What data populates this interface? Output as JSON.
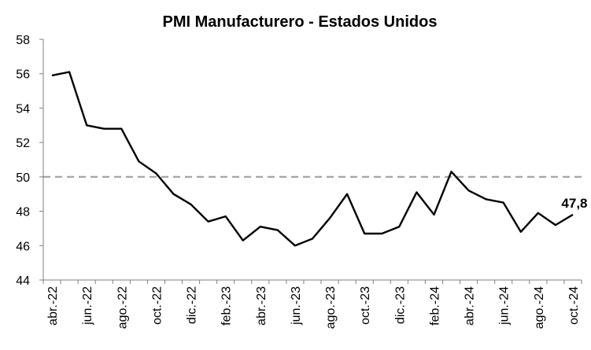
{
  "chart_data": {
    "type": "line",
    "title": "PMI Manufacturero - Estados Unidos",
    "xlabel": "",
    "ylabel": "",
    "ylim": [
      44,
      58
    ],
    "yticks": [
      "44",
      "46",
      "48",
      "50",
      "52",
      "54",
      "56",
      "58"
    ],
    "grid": false,
    "legend": "none",
    "x": [
      "abr.-22",
      "may.-22",
      "jun.-22",
      "jul.-22",
      "ago.-22",
      "sep.-22",
      "oct.-22",
      "nov.-22",
      "dic.-22",
      "ene.-23",
      "feb.-23",
      "mar.-23",
      "abr.-23",
      "may.-23",
      "jun.-23",
      "jul.-23",
      "ago.-23",
      "sep.-23",
      "oct.-23",
      "nov.-23",
      "dic.-23",
      "ene.-24",
      "feb.-24",
      "mar.-24",
      "abr.-24",
      "may.-24",
      "jun.-24",
      "jul.-24",
      "ago.-24",
      "sep.-24",
      "oct.-24"
    ],
    "xtick_labels": [
      "abr.-22",
      "jun.-22",
      "ago.-22",
      "oct.-22",
      "dic.-22",
      "feb.-23",
      "abr.-23",
      "jun.-23",
      "ago.-23",
      "oct.-23",
      "dic.-23",
      "feb.-24",
      "abr.-24",
      "jun.-24",
      "ago.-24",
      "oct.-24"
    ],
    "series": [
      {
        "values": [
          55.9,
          56.1,
          53.0,
          52.8,
          52.8,
          50.9,
          50.2,
          49.0,
          48.4,
          47.4,
          47.7,
          46.3,
          47.1,
          46.9,
          46.0,
          46.4,
          47.6,
          49.0,
          46.7,
          46.7,
          47.1,
          49.1,
          47.8,
          50.3,
          49.2,
          48.7,
          48.5,
          46.8,
          47.9,
          47.2,
          47.8
        ],
        "color": "#000000"
      }
    ],
    "reference_line": {
      "value": 50,
      "style": "dashed",
      "color": "#a6a6a6"
    },
    "end_label": "47,8"
  }
}
